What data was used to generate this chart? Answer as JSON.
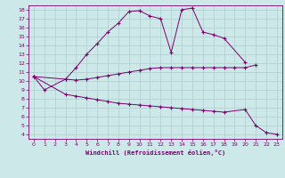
{
  "xlabel": "Windchill (Refroidissement éolien,°C)",
  "bg_color": "#cce8e8",
  "line_color": "#7b0070",
  "grid_color": "#b0cccc",
  "xlim": [
    -0.5,
    23.5
  ],
  "ylim": [
    3.5,
    18.5
  ],
  "xticks": [
    0,
    1,
    2,
    3,
    4,
    5,
    6,
    7,
    8,
    9,
    10,
    11,
    12,
    13,
    14,
    15,
    16,
    17,
    18,
    19,
    20,
    21,
    22,
    23
  ],
  "yticks": [
    4,
    5,
    6,
    7,
    8,
    9,
    10,
    11,
    12,
    13,
    14,
    15,
    16,
    17,
    18
  ],
  "line1_y": [
    10.5,
    9.0,
    null,
    10.2,
    11.5,
    13.0,
    14.2,
    15.5,
    16.5,
    17.8,
    17.9,
    17.3,
    17.0,
    13.2,
    18.0,
    18.2,
    15.5,
    15.2,
    14.8,
    null,
    12.1,
    null,
    null,
    null
  ],
  "line2_y": [
    10.5,
    null,
    null,
    10.2,
    10.1,
    10.2,
    10.4,
    10.6,
    10.8,
    11.0,
    11.2,
    11.4,
    11.5,
    11.5,
    11.5,
    11.5,
    11.5,
    11.5,
    11.5,
    11.5,
    11.5,
    11.8,
    null,
    null
  ],
  "line3_y": [
    10.5,
    null,
    null,
    8.5,
    8.3,
    8.1,
    7.9,
    7.7,
    7.5,
    7.4,
    7.3,
    7.2,
    7.1,
    7.0,
    6.9,
    6.8,
    6.7,
    6.6,
    6.5,
    null,
    6.8,
    5.0,
    4.2,
    4.0
  ]
}
